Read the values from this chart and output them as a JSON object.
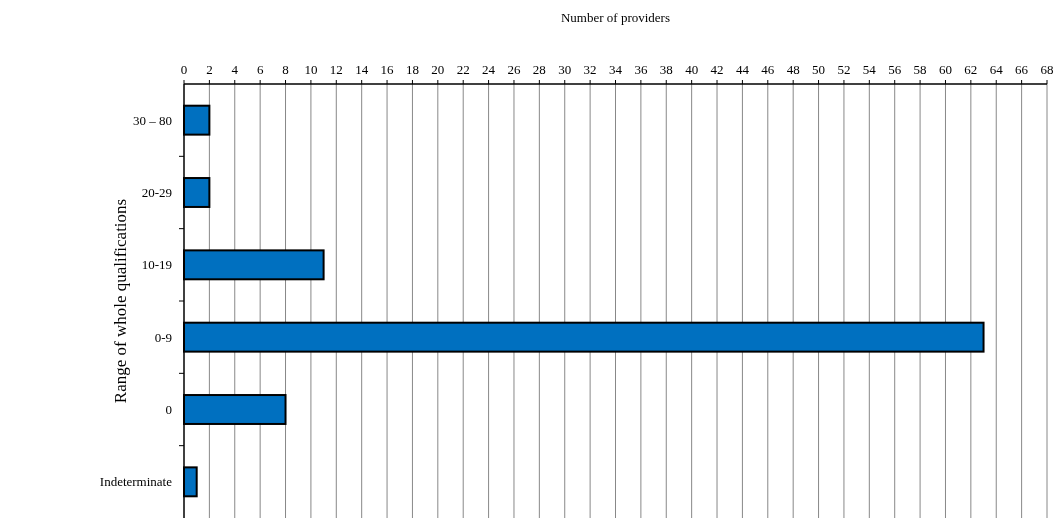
{
  "chart_data": {
    "type": "bar",
    "orientation": "horizontal",
    "xlabel": "Number of providers",
    "ylabel": "Range of whole qualifications",
    "categories": [
      "30 – 80",
      "20-29",
      "10-19",
      "0-9",
      "0",
      "Indeterminate"
    ],
    "values": [
      2,
      2,
      11,
      63,
      8,
      1
    ],
    "color": "#0070c0",
    "xlim": [
      0,
      68
    ],
    "xticks": [
      0,
      2,
      4,
      6,
      8,
      10,
      12,
      14,
      16,
      18,
      20,
      22,
      24,
      26,
      28,
      30,
      32,
      34,
      36,
      38,
      40,
      42,
      44,
      46,
      48,
      50,
      52,
      54,
      56,
      58,
      60,
      62,
      64,
      66,
      68
    ],
    "grid": "x"
  }
}
